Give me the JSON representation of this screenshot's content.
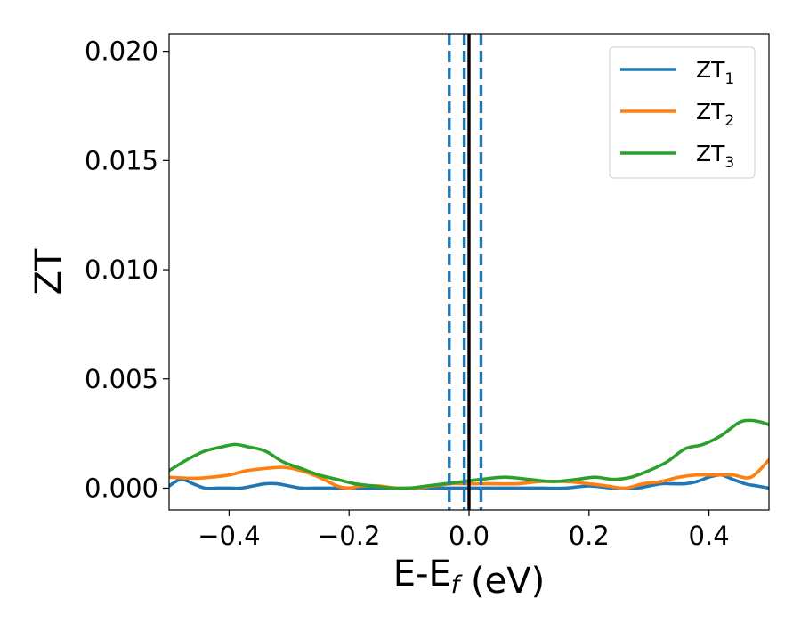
{
  "chart_data": {
    "type": "line",
    "title": "",
    "xlabel_main": "E-E",
    "xlabel_sub": "f",
    "xlabel_unit": " (eV)",
    "ylabel": "ZT",
    "xlim": [
      -0.5,
      0.5
    ],
    "ylim": [
      -0.001,
      0.0208
    ],
    "xticks": [
      -0.4,
      -0.2,
      0.0,
      0.2,
      0.4
    ],
    "xtick_labels": [
      "−0.4",
      "−0.2",
      "0.0",
      "0.2",
      "0.4"
    ],
    "yticks": [
      0.0,
      0.005,
      0.01,
      0.015,
      0.02
    ],
    "ytick_labels": [
      "0.000",
      "0.005",
      "0.010",
      "0.015",
      "0.020"
    ],
    "grid": false,
    "legend_position": "top-right",
    "vlines": [
      {
        "x": 0.0,
        "style": "solid",
        "color": "#000000"
      },
      {
        "x": -0.033,
        "style": "dashed",
        "color": "#1f77b4"
      },
      {
        "x": -0.008,
        "style": "dashed",
        "color": "#1f77b4"
      },
      {
        "x": 0.02,
        "style": "dashed",
        "color": "#1f77b4"
      }
    ],
    "series": [
      {
        "name_main": "ZT",
        "name_sub": "1",
        "color": "#1f77b4",
        "x": [
          -0.5,
          -0.48,
          -0.46,
          -0.44,
          -0.42,
          -0.4,
          -0.38,
          -0.36,
          -0.34,
          -0.32,
          -0.3,
          -0.28,
          -0.26,
          -0.24,
          -0.2,
          -0.16,
          -0.12,
          -0.08,
          -0.04,
          0.0,
          0.04,
          0.08,
          0.12,
          0.16,
          0.2,
          0.24,
          0.28,
          0.3,
          0.32,
          0.34,
          0.36,
          0.38,
          0.4,
          0.42,
          0.44,
          0.46,
          0.48,
          0.5
        ],
        "y": [
          0.0001,
          0.0004,
          0.0002,
          0.0,
          0.0,
          0.0,
          0.0,
          0.0001,
          0.0002,
          0.0002,
          0.0001,
          0.0,
          0.0,
          0.0,
          0.0,
          0.0,
          0.0,
          0.0,
          0.0,
          0.0,
          0.0,
          0.0,
          0.0,
          0.0,
          0.0001,
          0.0,
          0.0,
          0.0001,
          0.0002,
          0.0002,
          0.0002,
          0.0003,
          0.0005,
          0.0006,
          0.0004,
          0.0002,
          0.0001,
          0.0
        ]
      },
      {
        "name_main": "ZT",
        "name_sub": "2",
        "color": "#ff7f0e",
        "x": [
          -0.5,
          -0.46,
          -0.43,
          -0.4,
          -0.37,
          -0.34,
          -0.31,
          -0.28,
          -0.25,
          -0.22,
          -0.2,
          -0.18,
          -0.15,
          -0.12,
          -0.09,
          -0.06,
          -0.03,
          0.0,
          0.04,
          0.08,
          0.12,
          0.16,
          0.2,
          0.23,
          0.26,
          0.29,
          0.32,
          0.35,
          0.38,
          0.41,
          0.44,
          0.47,
          0.5
        ],
        "y": [
          0.0005,
          0.00045,
          0.0005,
          0.0006,
          0.0008,
          0.0009,
          0.00095,
          0.0008,
          0.0005,
          0.0001,
          0.0,
          0.0001,
          0.0001,
          0.0,
          0.0,
          0.0001,
          0.0002,
          0.0002,
          0.0002,
          0.0002,
          0.0003,
          0.0003,
          0.0002,
          0.0001,
          0.0,
          0.0002,
          0.0003,
          0.0005,
          0.0006,
          0.0006,
          0.0006,
          0.0005,
          0.0013
        ]
      },
      {
        "name_main": "ZT",
        "name_sub": "3",
        "color": "#2ca02c",
        "x": [
          -0.5,
          -0.47,
          -0.44,
          -0.41,
          -0.39,
          -0.37,
          -0.34,
          -0.31,
          -0.28,
          -0.25,
          -0.22,
          -0.19,
          -0.16,
          -0.13,
          -0.1,
          -0.07,
          -0.04,
          -0.01,
          0.02,
          0.06,
          0.1,
          0.14,
          0.18,
          0.21,
          0.24,
          0.27,
          0.3,
          0.33,
          0.36,
          0.39,
          0.42,
          0.45,
          0.47,
          0.49,
          0.5
        ],
        "y": [
          0.0008,
          0.0013,
          0.0017,
          0.0019,
          0.002,
          0.0019,
          0.0017,
          0.0012,
          0.0009,
          0.0006,
          0.0004,
          0.0002,
          0.0001,
          0.0,
          0.0,
          0.0001,
          0.0002,
          0.0003,
          0.0004,
          0.0005,
          0.0004,
          0.0003,
          0.0004,
          0.0005,
          0.0004,
          0.0005,
          0.0008,
          0.0012,
          0.0018,
          0.002,
          0.0024,
          0.003,
          0.0031,
          0.003,
          0.0029
        ]
      }
    ]
  }
}
